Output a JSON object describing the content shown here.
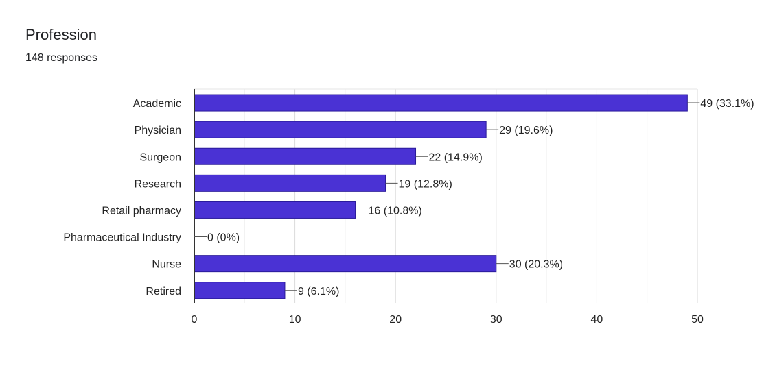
{
  "header": {
    "title": "Profession",
    "subtitle": "148 responses"
  },
  "chart_data": {
    "type": "bar",
    "orientation": "horizontal",
    "categories": [
      "Academic",
      "Physician",
      "Surgeon",
      "Research",
      "Retail pharmacy",
      "Pharmaceutical Industry",
      "Nurse",
      "Retired"
    ],
    "values": [
      49,
      29,
      22,
      19,
      16,
      0,
      30,
      9
    ],
    "data_labels": [
      "49 (33.1%)",
      "29 (19.6%)",
      "22 (14.9%)",
      "19 (12.8%)",
      "16 (10.8%)",
      "0 (0%)",
      "30 (20.3%)",
      "9 (6.1%)"
    ],
    "xlim": [
      0,
      50
    ],
    "xticks": [
      0,
      10,
      20,
      30,
      40,
      50
    ],
    "grid": true,
    "bar_color": "#4a32d4",
    "bar_border_color": "#2a1a9a"
  }
}
